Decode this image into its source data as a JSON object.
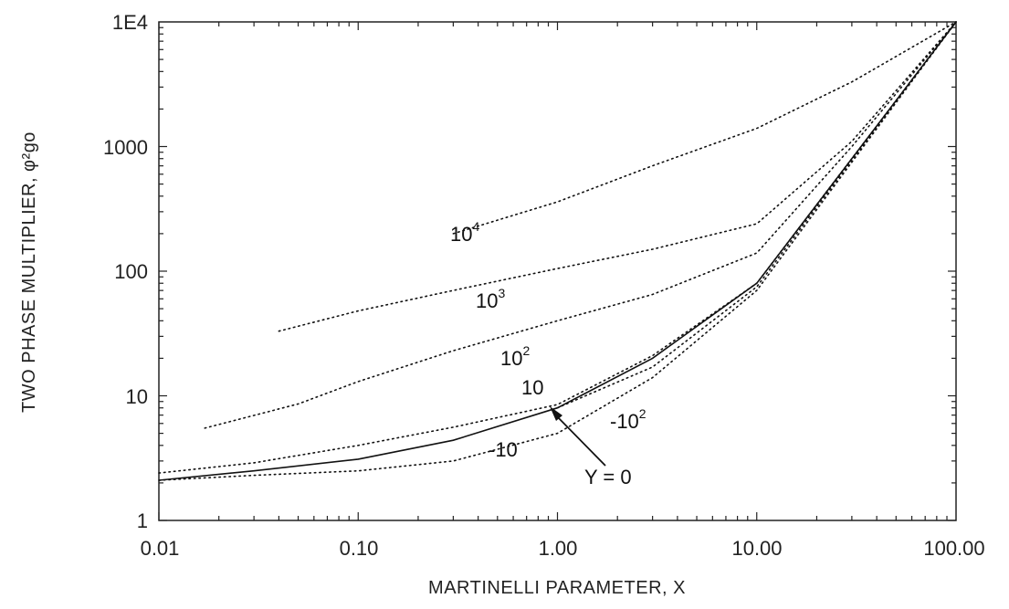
{
  "chart_data": {
    "type": "line",
    "title": "",
    "xlabel": "MARTINELLI PARAMETER, X",
    "ylabel": "TWO PHASE MULTIPLIER, φ²go",
    "x_scale": "log",
    "y_scale": "log",
    "xlim": [
      0.01,
      100
    ],
    "ylim": [
      1,
      10000
    ],
    "x_ticks": [
      "0.01",
      "0.10",
      "1.00",
      "10.00",
      "100.00"
    ],
    "y_ticks": [
      "1",
      "10",
      "100",
      "1000",
      "1E4"
    ],
    "grid": false,
    "series": [
      {
        "name": "Y = 0",
        "style": "solid",
        "x": [
          0.01,
          0.03,
          0.1,
          0.3,
          1,
          3,
          10,
          30,
          100
        ],
        "y": [
          2.1,
          2.5,
          3.1,
          4.4,
          8,
          20,
          80,
          800,
          10000
        ]
      },
      {
        "name": "10",
        "style": "dotted",
        "x": [
          0.01,
          0.03,
          0.1,
          0.3,
          1,
          3,
          10,
          30,
          100
        ],
        "y": [
          2.4,
          2.9,
          4,
          5.6,
          8.5,
          21,
          80,
          800,
          10000
        ]
      },
      {
        "name": "10²",
        "style": "dotted",
        "x": [
          0.017,
          0.05,
          0.1,
          0.3,
          1,
          3,
          10,
          30,
          100
        ],
        "y": [
          5.5,
          8.6,
          13,
          23,
          40,
          65,
          140,
          1000,
          10000
        ]
      },
      {
        "name": "10³",
        "style": "dotted",
        "x": [
          0.04,
          0.1,
          0.3,
          1,
          3,
          10,
          30,
          100
        ],
        "y": [
          33,
          48,
          70,
          105,
          150,
          240,
          1100,
          10000
        ]
      },
      {
        "name": "10⁴",
        "style": "dotted",
        "x": [
          0.3,
          1,
          3,
          10,
          30,
          100
        ],
        "y": [
          200,
          360,
          700,
          1400,
          3300,
          10000
        ]
      },
      {
        "name": "-10",
        "style": "dotted",
        "x": [
          0.01,
          0.03,
          0.1,
          0.3,
          1,
          3,
          10,
          30,
          100
        ],
        "y": [
          2.1,
          2.3,
          2.5,
          3,
          5,
          14,
          70,
          750,
          10000
        ]
      },
      {
        "name": "-10²",
        "style": "dotted",
        "x": [
          1,
          3,
          10,
          30,
          100
        ],
        "y": [
          8,
          17,
          75,
          780,
          10000
        ]
      }
    ],
    "curve_labels": [
      "10",
      "4",
      "10",
      "3",
      "10",
      "2",
      "10",
      "-10",
      "2",
      "-10",
      "Y = 0"
    ]
  }
}
